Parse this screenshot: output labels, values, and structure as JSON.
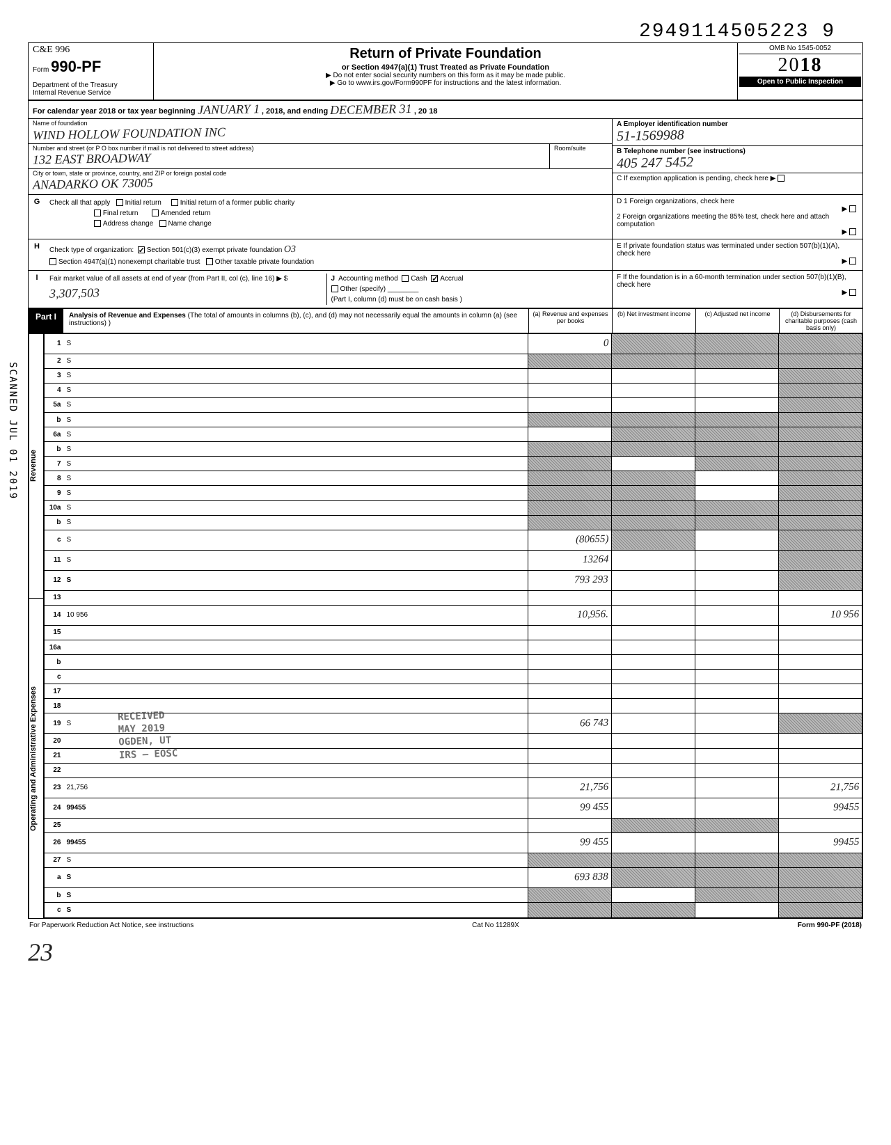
{
  "scan_stamp": "SCANNED JUL 01 2019",
  "top_number": "2949114505223  9",
  "header": {
    "form_prefix": "C&E 996",
    "form_no": "990-PF",
    "form_label": "Form",
    "dept": "Department of the Treasury",
    "irs": "Internal Revenue Service",
    "title": "Return of Private Foundation",
    "subtitle": "or Section 4947(a)(1) Trust Treated as Private Foundation",
    "note1": "▶ Do not enter social security numbers on this form as it may be made public.",
    "note2": "▶ Go to www.irs.gov/Form990PF for instructions and the latest information.",
    "omb": "OMB No 1545-0052",
    "year_prefix": "20",
    "year_suffix": "18",
    "open": "Open to Public Inspection"
  },
  "cal": {
    "label_a": "For calendar year 2018 or tax year beginning",
    "begin": "JANUARY 1",
    "mid": ", 2018, and ending",
    "end": "DECEMBER 31",
    "endyr": ", 20 18"
  },
  "id": {
    "name_label": "Name of foundation",
    "name": "WIND HOLLOW FOUNDATION INC",
    "addr_label": "Number and street (or P O box number if mail is not delivered to street address)",
    "addr": "132 EAST BROADWAY",
    "room_label": "Room/suite",
    "city_label": "City or town, state or province, country, and ZIP or foreign postal code",
    "city": "ANADARKO    OK        73005",
    "A_label": "A  Employer identification number",
    "A_val": "51-1569988",
    "B_label": "B  Telephone number (see instructions)",
    "B_val": "405 247 5452",
    "C_label": "C  If exemption application is pending, check here ▶"
  },
  "G": {
    "tag": "G",
    "label": "Check all that apply",
    "opts": [
      "Initial return",
      "Final return",
      "Address change",
      "Initial return of a former public charity",
      "Amended return",
      "Name change"
    ]
  },
  "H": {
    "tag": "H",
    "label": "Check type of organization:",
    "opt1": "Section 501(c)(3) exempt private foundation",
    "opt2": "Section 4947(a)(1) nonexempt charitable trust",
    "opt3": "Other taxable private foundation"
  },
  "I": {
    "tag": "I",
    "label": "Fair market value of all assets at end of year  (from Part II, col (c), line 16) ▶ $",
    "val": "3,307,503"
  },
  "J": {
    "tag": "J",
    "label": "Accounting method",
    "opts": [
      "Cash",
      "Accrual",
      "Other (specify)"
    ],
    "note": "(Part I, column (d) must be on cash basis )"
  },
  "D": {
    "label1": "D  1 Foreign organizations, check here",
    "label2": "2 Foreign organizations meeting the 85% test, check here and attach computation"
  },
  "E": {
    "label": "E  If private foundation status was terminated under section 507(b)(1)(A), check here"
  },
  "F": {
    "label": "F  If the foundation is in a 60-month termination under section 507(b)(1)(B), check here"
  },
  "part1": {
    "tag": "Part I",
    "title": "Analysis of Revenue and Expenses",
    "title_note": "(The total of amounts in columns (b), (c), and (d) may not necessarily equal the amounts in column (a) (see instructions) )",
    "cols": [
      "(a) Revenue and expenses per books",
      "(b) Net investment income",
      "(c) Adjusted net income",
      "(d) Disbursements for charitable purposes (cash basis only)"
    ]
  },
  "rev_label": "Revenue",
  "exp_label": "Operating and Administrative Expenses",
  "rows": [
    {
      "n": "1",
      "d": "S",
      "a": "0",
      "b": "S",
      "c": "S"
    },
    {
      "n": "2",
      "d": "S",
      "a": "S",
      "b": "S",
      "c": "S"
    },
    {
      "n": "3",
      "d": "S",
      "a": "",
      "b": "",
      "c": ""
    },
    {
      "n": "4",
      "d": "S",
      "a": "",
      "b": "",
      "c": ""
    },
    {
      "n": "5a",
      "d": "S",
      "a": "",
      "b": "",
      "c": ""
    },
    {
      "n": "b",
      "d": "S",
      "a": "S",
      "b": "S",
      "c": "S"
    },
    {
      "n": "6a",
      "d": "S",
      "a": "",
      "b": "S",
      "c": "S"
    },
    {
      "n": "b",
      "d": "S",
      "a": "S",
      "b": "S",
      "c": "S"
    },
    {
      "n": "7",
      "d": "S",
      "a": "S",
      "b": "",
      "c": "S"
    },
    {
      "n": "8",
      "d": "S",
      "a": "S",
      "b": "S",
      "c": ""
    },
    {
      "n": "9",
      "d": "S",
      "a": "S",
      "b": "S",
      "c": ""
    },
    {
      "n": "10a",
      "d": "S",
      "a": "S",
      "b": "S",
      "c": "S"
    },
    {
      "n": "b",
      "d": "S",
      "a": "S",
      "b": "S",
      "c": "S"
    },
    {
      "n": "c",
      "d": "S",
      "a": "(80655)",
      "b": "S",
      "c": ""
    },
    {
      "n": "11",
      "d": "S",
      "a": "13264",
      "b": "",
      "c": ""
    },
    {
      "n": "12",
      "d": "S",
      "a": "793 293",
      "b": "",
      "c": "",
      "bold": true
    },
    {
      "n": "13",
      "d": "",
      "a": "",
      "b": "",
      "c": ""
    },
    {
      "n": "14",
      "d": "10 956",
      "a": "10,956.",
      "b": "",
      "c": ""
    },
    {
      "n": "15",
      "d": "",
      "a": "",
      "b": "",
      "c": ""
    },
    {
      "n": "16a",
      "d": "",
      "a": "",
      "b": "",
      "c": ""
    },
    {
      "n": "b",
      "d": "",
      "a": "",
      "b": "",
      "c": ""
    },
    {
      "n": "c",
      "d": "",
      "a": "",
      "b": "",
      "c": ""
    },
    {
      "n": "17",
      "d": "",
      "a": "",
      "b": "",
      "c": ""
    },
    {
      "n": "18",
      "d": "",
      "a": "",
      "b": "",
      "c": ""
    },
    {
      "n": "19",
      "d": "S",
      "a": "66 743",
      "b": "",
      "c": ""
    },
    {
      "n": "20",
      "d": "",
      "a": "",
      "b": "",
      "c": ""
    },
    {
      "n": "21",
      "d": "",
      "a": "",
      "b": "",
      "c": ""
    },
    {
      "n": "22",
      "d": "",
      "a": "",
      "b": "",
      "c": ""
    },
    {
      "n": "23",
      "d": "21,756",
      "a": "21,756",
      "b": "",
      "c": ""
    },
    {
      "n": "24",
      "d": "99455",
      "a": "99 455",
      "b": "",
      "c": "",
      "bold": true
    },
    {
      "n": "25",
      "d": "",
      "a": "",
      "b": "S",
      "c": "S"
    },
    {
      "n": "26",
      "d": "99455",
      "a": "99 455",
      "b": "",
      "c": "",
      "bold": true
    },
    {
      "n": "27",
      "d": "S",
      "a": "S",
      "b": "S",
      "c": "S"
    },
    {
      "n": "a",
      "d": "S",
      "a": "693 838",
      "b": "S",
      "c": "S",
      "bold": true
    },
    {
      "n": "b",
      "d": "S",
      "a": "S",
      "b": "",
      "c": "S",
      "bold": true
    },
    {
      "n": "c",
      "d": "S",
      "a": "S",
      "b": "S",
      "c": "",
      "bold": true
    }
  ],
  "stamp": {
    "l1": "RECEIVED",
    "l2": "MAY 2019",
    "l3": "OGDEN, UT",
    "l4": "IRS — EOSC"
  },
  "footer": {
    "left": "For Paperwork Reduction Act Notice, see instructions",
    "mid": "Cat No 11289X",
    "right": "Form 990-PF (2018)"
  },
  "pagenum": "23",
  "colors": {
    "text": "#000000",
    "bg": "#ffffff",
    "shade": "#999999"
  }
}
